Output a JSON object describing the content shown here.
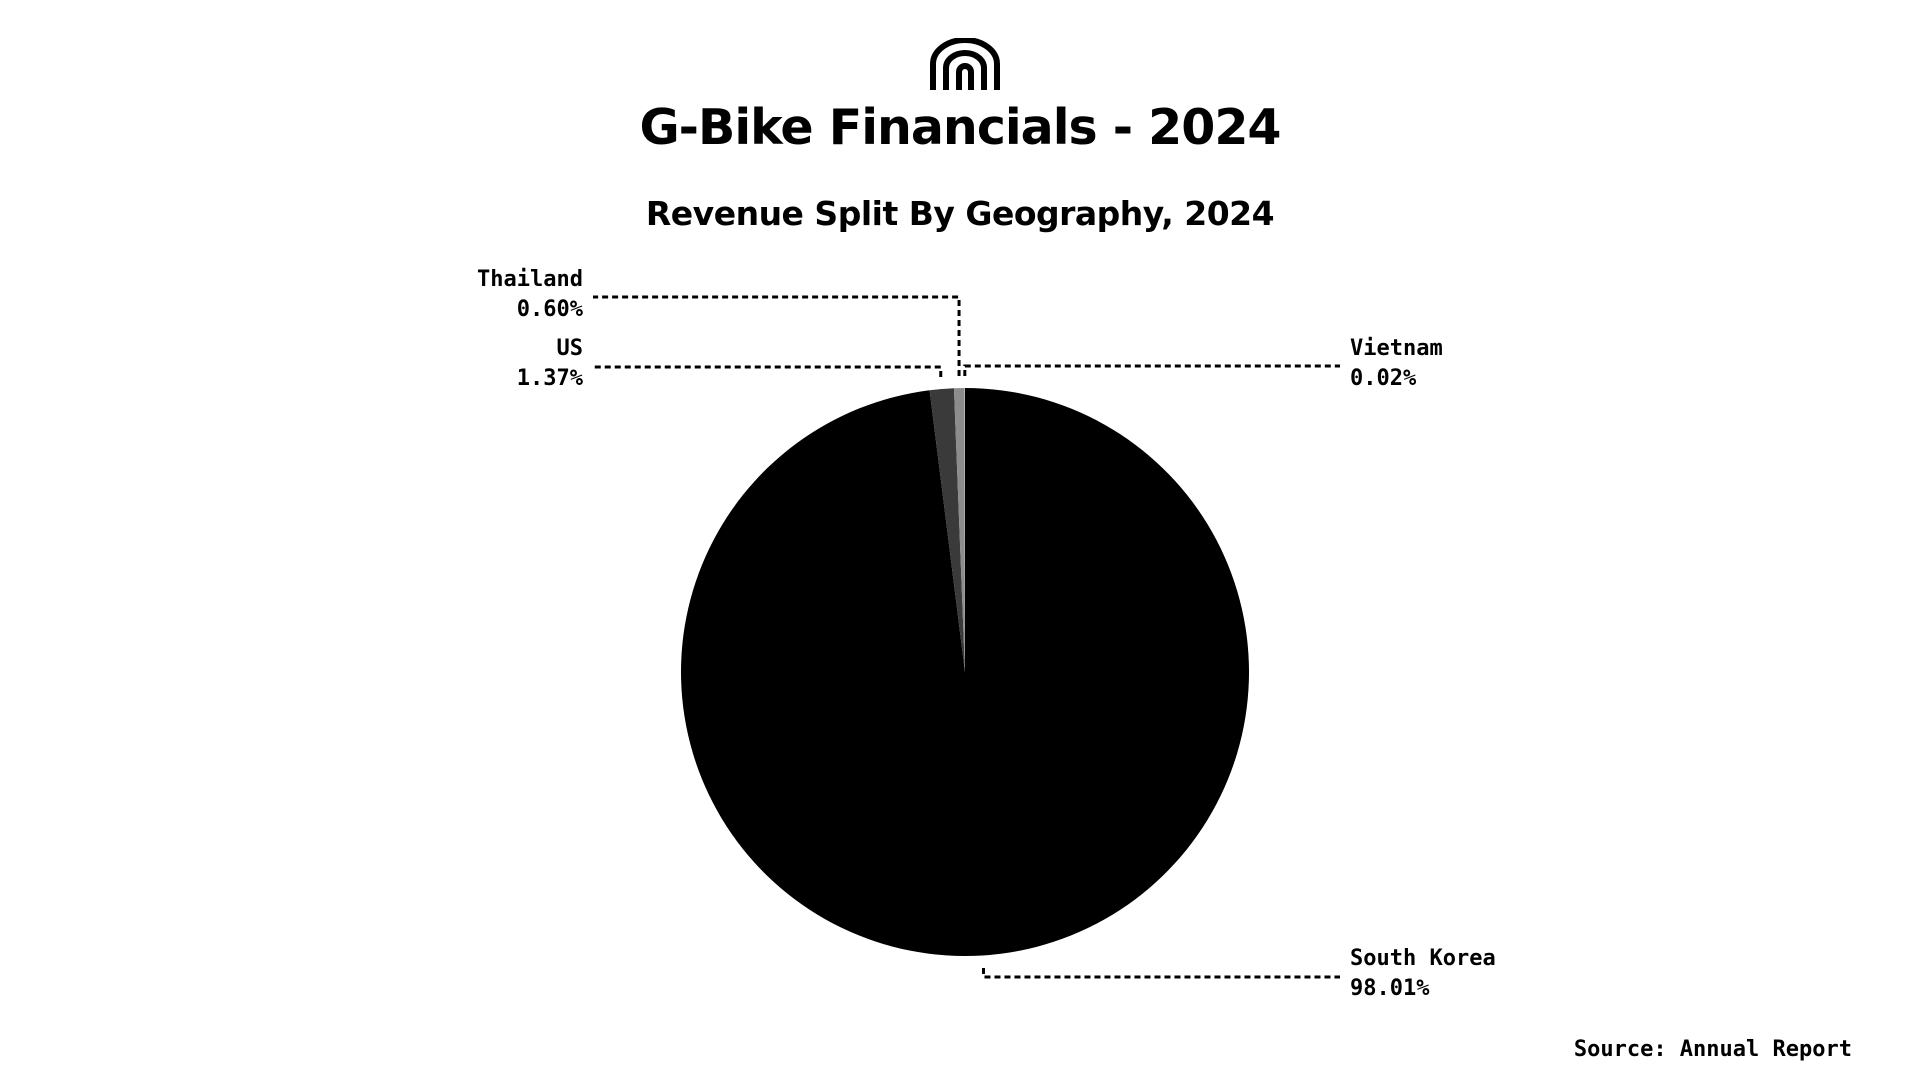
{
  "header": {
    "logo_icon": "arches-logo-icon",
    "title": "G-Bike Financials - 2024"
  },
  "source_note": "Source: Annual Report",
  "chart_data": {
    "type": "pie",
    "title": "Revenue Split By Geography, 2024",
    "slices": [
      {
        "label": "South Korea",
        "value": 98.01,
        "value_label": "98.01%",
        "color": "#000000"
      },
      {
        "label": "US",
        "value": 1.37,
        "value_label": "1.37%",
        "color": "#3a3a3a"
      },
      {
        "label": "Thailand",
        "value": 0.6,
        "value_label": "0.60%",
        "color": "#8c8c8c"
      },
      {
        "label": "Vietnam",
        "value": 0.02,
        "value_label": "0.02%",
        "color": "#d9d9d9"
      }
    ],
    "unit": "%",
    "start_angle": "12 o'clock",
    "direction": "clockwise",
    "leader_lines": "dotted"
  }
}
